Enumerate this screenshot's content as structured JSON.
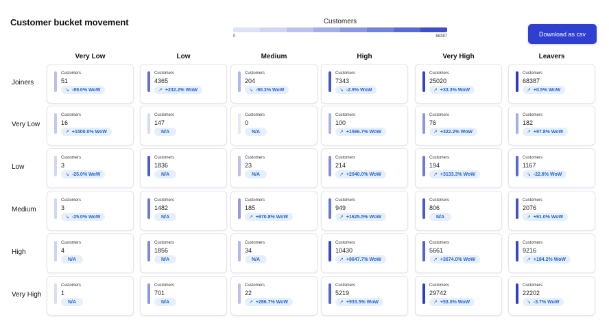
{
  "page_title": "Customer bucket movement",
  "legend": {
    "title": "Customers",
    "min": "0",
    "max": "68387",
    "colors": [
      "#dde2f6",
      "#cfd6f3",
      "#bac3ee",
      "#a3aee8",
      "#8b98e1",
      "#7282da",
      "#5a6ad3",
      "#3e4fc9"
    ]
  },
  "download_label": "Download as csv",
  "columns": [
    "Very Low",
    "Low",
    "Medium",
    "High",
    "Very High",
    "Leavers"
  ],
  "rows": [
    {
      "label": "Joiners",
      "cells": [
        {
          "label": "Customers",
          "value": "51",
          "change": "-89.0% WoW",
          "trend": "down",
          "color": "#b8c1ec"
        },
        {
          "label": "Customers",
          "value": "4365",
          "change": "+232.2% WoW",
          "trend": "up",
          "color": "#5f6fd4"
        },
        {
          "label": "Customers",
          "value": "204",
          "change": "-90.3% WoW",
          "trend": "down",
          "color": "#aeb8ea"
        },
        {
          "label": "Customers",
          "value": "7343",
          "change": "-2.9% WoW",
          "trend": "down",
          "color": "#4555cc"
        },
        {
          "label": "Customers",
          "value": "25020",
          "change": "+33.3% WoW",
          "trend": "up",
          "color": "#3444c8"
        },
        {
          "label": "Customers",
          "value": "68387",
          "change": "+0.5% WoW",
          "trend": "up",
          "color": "#2a38c2"
        }
      ]
    },
    {
      "label": "Very Low",
      "cells": [
        {
          "label": "Customers",
          "value": "16",
          "change": "+1500.0% WoW",
          "trend": "up",
          "color": "#c3caef"
        },
        {
          "label": "Customers",
          "value": "147",
          "change": "N/A",
          "trend": "none",
          "color": "#d4d9f4"
        },
        {
          "label": "Customers",
          "value": "0",
          "change": "N/A",
          "trend": "none",
          "color": "#e4e7f8"
        },
        {
          "label": "Customers",
          "value": "100",
          "change": "+1566.7% WoW",
          "trend": "up",
          "color": "#aab3e9"
        },
        {
          "label": "Customers",
          "value": "76",
          "change": "+322.2% WoW",
          "trend": "up",
          "color": "#8a97e0"
        },
        {
          "label": "Customers",
          "value": "182",
          "change": "+97.8% WoW",
          "trend": "up",
          "color": "#a3ade7"
        }
      ]
    },
    {
      "label": "Low",
      "cells": [
        {
          "label": "Customers",
          "value": "3",
          "change": "-25.0% WoW",
          "trend": "down",
          "color": "#d0d6f3"
        },
        {
          "label": "Customers",
          "value": "1836",
          "change": "N/A",
          "trend": "none",
          "color": "#4c5bcf"
        },
        {
          "label": "Customers",
          "value": "23",
          "change": "N/A",
          "trend": "none",
          "color": "#b9c1ed"
        },
        {
          "label": "Customers",
          "value": "214",
          "change": "+2040.0% WoW",
          "trend": "up",
          "color": "#8490de"
        },
        {
          "label": "Customers",
          "value": "194",
          "change": "+3133.3% WoW",
          "trend": "up",
          "color": "#6b79d8"
        },
        {
          "label": "Customers",
          "value": "1167",
          "change": "-22.8% WoW",
          "trend": "down",
          "color": "#5a69d2"
        }
      ]
    },
    {
      "label": "Medium",
      "cells": [
        {
          "label": "Customers",
          "value": "3",
          "change": "-25.0% WoW",
          "trend": "down",
          "color": "#d0d6f3"
        },
        {
          "label": "Customers",
          "value": "1482",
          "change": "N/A",
          "trend": "none",
          "color": "#6b79d8"
        },
        {
          "label": "Customers",
          "value": "185",
          "change": "+670.8% WoW",
          "trend": "up",
          "color": "#8f9ae1"
        },
        {
          "label": "Customers",
          "value": "949",
          "change": "+1625.5% WoW",
          "trend": "up",
          "color": "#6a78d7"
        },
        {
          "label": "Customers",
          "value": "806",
          "change": "N/A",
          "trend": "none",
          "color": "#4a59ce"
        },
        {
          "label": "Customers",
          "value": "2076",
          "change": "+91.0% WoW",
          "trend": "up",
          "color": "#4453cc"
        }
      ]
    },
    {
      "label": "High",
      "cells": [
        {
          "label": "Customers",
          "value": "4",
          "change": "N/A",
          "trend": "none",
          "color": "#cdd3f2"
        },
        {
          "label": "Customers",
          "value": "1856",
          "change": "N/A",
          "trend": "none",
          "color": "#7c88dc"
        },
        {
          "label": "Customers",
          "value": "34",
          "change": "N/A",
          "trend": "none",
          "color": "#b0b9eb"
        },
        {
          "label": "Customers",
          "value": "10430",
          "change": "+9647.7% WoW",
          "trend": "up",
          "color": "#3747c9"
        },
        {
          "label": "Customers",
          "value": "5661",
          "change": "+3674.0% WoW",
          "trend": "up",
          "color": "#5362d1"
        },
        {
          "label": "Customers",
          "value": "9216",
          "change": "+184.2% WoW",
          "trend": "up",
          "color": "#3646c9"
        }
      ]
    },
    {
      "label": "Very High",
      "cells": [
        {
          "label": "Customers",
          "value": "1",
          "change": "N/A",
          "trend": "none",
          "color": "#d8ddf5"
        },
        {
          "label": "Customers",
          "value": "701",
          "change": "N/A",
          "trend": "none",
          "color": "#8c97e0"
        },
        {
          "label": "Customers",
          "value": "22",
          "change": "+266.7% WoW",
          "trend": "up",
          "color": "#b9c1ed"
        },
        {
          "label": "Customers",
          "value": "5219",
          "change": "+933.5% WoW",
          "trend": "up",
          "color": "#5664d1"
        },
        {
          "label": "Customers",
          "value": "29742",
          "change": "+53.0% WoW",
          "trend": "up",
          "color": "#2e3dc5"
        },
        {
          "label": "Customers",
          "value": "22202",
          "change": "-3.7% WoW",
          "trend": "down",
          "color": "#2f3ec5"
        }
      ]
    }
  ]
}
